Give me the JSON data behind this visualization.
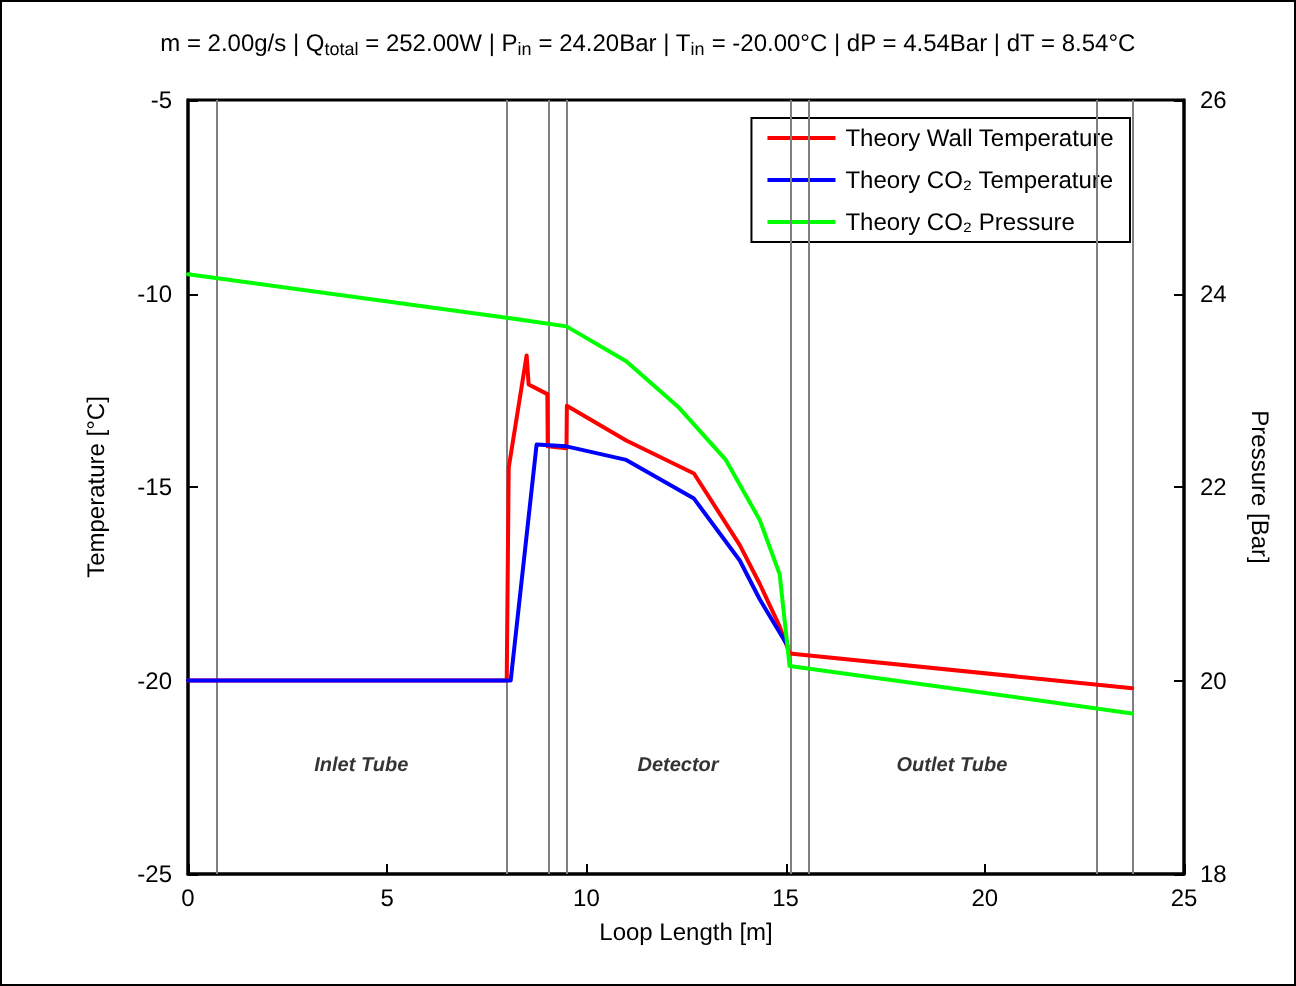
{
  "chart_data": {
    "type": "line",
    "title": "m = 2.00g/s | Q$_{total}$ = 252.00W | P$_{in}$ = 24.20Bar | T$_{in}$ = -20.00°C | dP = 4.54Bar | dT = 8.54°C",
    "xlabel": "Loop Length [m]",
    "ylabel": "Temperature [°C]",
    "y2label": "Pressure [Bar]",
    "xlim": [
      0,
      25
    ],
    "xticks": [
      0,
      5,
      10,
      15,
      20,
      25
    ],
    "ylim": [
      -25,
      -5
    ],
    "yticks": [
      -25,
      -20,
      -15,
      -10,
      -5
    ],
    "y2lim": [
      18,
      26
    ],
    "y2ticks": [
      18,
      20,
      22,
      24,
      26
    ],
    "grid": false,
    "legend": "top right",
    "marker": "none",
    "line_style": "solid",
    "series": [
      {
        "name": "Theory Wall Temperature",
        "color": "#ff0000",
        "x": [
          0,
          8.0,
          8.05,
          8.5,
          8.55,
          9.02,
          9.03,
          9.5,
          9.51,
          11.0,
          12.7,
          13.85,
          14.35,
          14.85,
          15.1,
          23.7
        ],
        "values": [
          -20,
          -20,
          -14.5,
          -11.6,
          -12.35,
          -12.6,
          -13.95,
          -14.0,
          -12.9,
          -13.8,
          -14.65,
          -16.5,
          -17.5,
          -18.6,
          -19.3,
          -20.2
        ]
      },
      {
        "name": "Theory CO₂ Temperature",
        "color": "#0000ff",
        "x": [
          0,
          8.1,
          8.75,
          9.5,
          11.0,
          12.7,
          13.85,
          14.35,
          15.05
        ],
        "values": [
          -20,
          -20,
          -13.9,
          -13.95,
          -14.3,
          -15.3,
          -16.9,
          -17.9,
          -19.1
        ]
      },
      {
        "name": "Theory CO₂ Pressure",
        "color": "#00ff00",
        "axis": "y2",
        "x": [
          0,
          8.0,
          9.5,
          11.0,
          12.3,
          13.5,
          14.35,
          14.85,
          15.1,
          23.7
        ],
        "values": [
          24.2,
          23.75,
          23.66,
          23.3,
          22.83,
          22.28,
          21.66,
          21.1,
          20.15,
          19.66
        ]
      }
    ],
    "ref_lines": [
      {
        "axis": "x",
        "value": 0.7,
        "label": null,
        "color": "#808080"
      },
      {
        "axis": "x",
        "value": 8.0,
        "label": null,
        "color": "#808080"
      },
      {
        "axis": "x",
        "value": 9.05,
        "label": null,
        "color": "#808080"
      },
      {
        "axis": "x",
        "value": 9.5,
        "label": null,
        "color": "#808080"
      },
      {
        "axis": "x",
        "value": 15.1,
        "label": null,
        "color": "#808080"
      },
      {
        "axis": "x",
        "value": 15.55,
        "label": null,
        "color": "#808080"
      },
      {
        "axis": "x",
        "value": 22.8,
        "label": null,
        "color": "#808080"
      },
      {
        "axis": "x",
        "value": 23.7,
        "label": null,
        "color": "#808080"
      }
    ],
    "annotations": [
      "Inlet Tube",
      "Detector",
      "Outlet Tube"
    ]
  }
}
